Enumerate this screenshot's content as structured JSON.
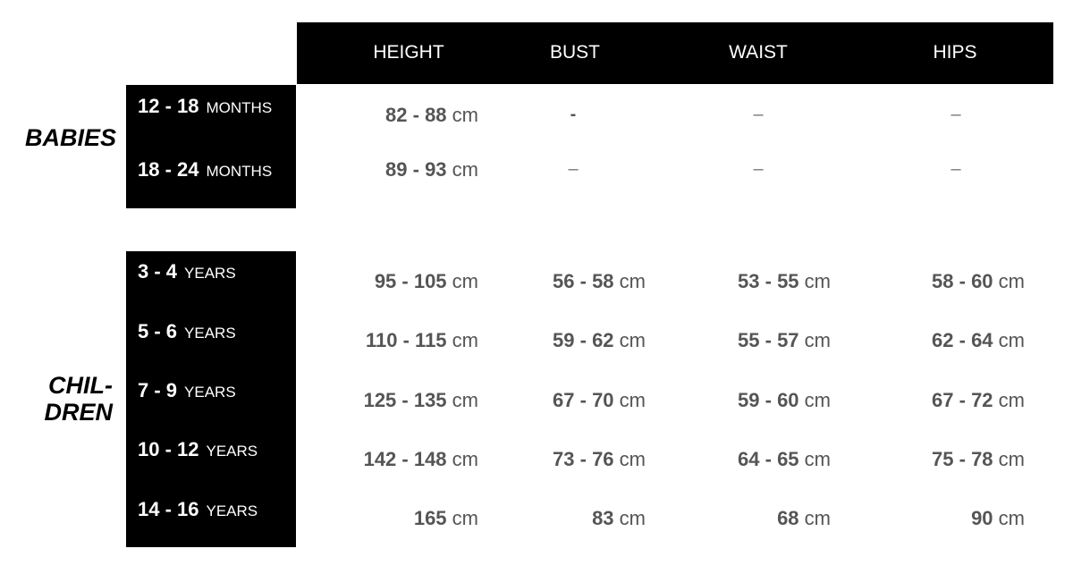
{
  "headers": [
    "HEIGHT",
    "BUST",
    "WAIST",
    "HIPS"
  ],
  "groups": [
    {
      "name": "BABIES",
      "rows": [
        {
          "size": "12 - 18",
          "unit": "MONTHS",
          "values": [
            [
              "82 - 88",
              "cm"
            ],
            null,
            null,
            null
          ],
          "dashes": [
            "-",
            "–",
            "–"
          ]
        },
        {
          "size": "18 - 24",
          "unit": "MONTHS",
          "values": [
            [
              "89 - 93",
              "cm"
            ],
            null,
            null,
            null
          ],
          "dashes": [
            "–",
            "–",
            "–"
          ]
        }
      ]
    },
    {
      "name_line1": "CHIL-",
      "name_line2": "DREN",
      "rows": [
        {
          "size": "3 - 4",
          "unit": "YEARS",
          "values": [
            [
              "95 - 105",
              "cm"
            ],
            [
              "56 - 58",
              "cm"
            ],
            [
              "53 - 55",
              "cm"
            ],
            [
              "58 - 60",
              "cm"
            ]
          ]
        },
        {
          "size": "5 - 6",
          "unit": "YEARS",
          "values": [
            [
              "110 - 115",
              "cm"
            ],
            [
              "59 - 62",
              "cm"
            ],
            [
              "55 - 57",
              "cm"
            ],
            [
              "62 - 64",
              "cm"
            ]
          ]
        },
        {
          "size": "7 - 9",
          "unit": "YEARS",
          "values": [
            [
              "125 - 135",
              "cm"
            ],
            [
              "67 - 70",
              "cm"
            ],
            [
              "59 - 60",
              "cm"
            ],
            [
              "67 - 72",
              "cm"
            ]
          ]
        },
        {
          "size": "10 - 12",
          "unit": "YEARS",
          "values": [
            [
              "142 - 148",
              "cm"
            ],
            [
              "73 - 76",
              "cm"
            ],
            [
              "64 - 65",
              "cm"
            ],
            [
              "75 - 78",
              "cm"
            ]
          ]
        },
        {
          "size": "14 - 16",
          "unit": "YEARS",
          "values": [
            [
              "165",
              "cm"
            ],
            [
              "83",
              "cm"
            ],
            [
              "68",
              "cm"
            ],
            [
              "90",
              "cm"
            ]
          ]
        }
      ]
    }
  ]
}
